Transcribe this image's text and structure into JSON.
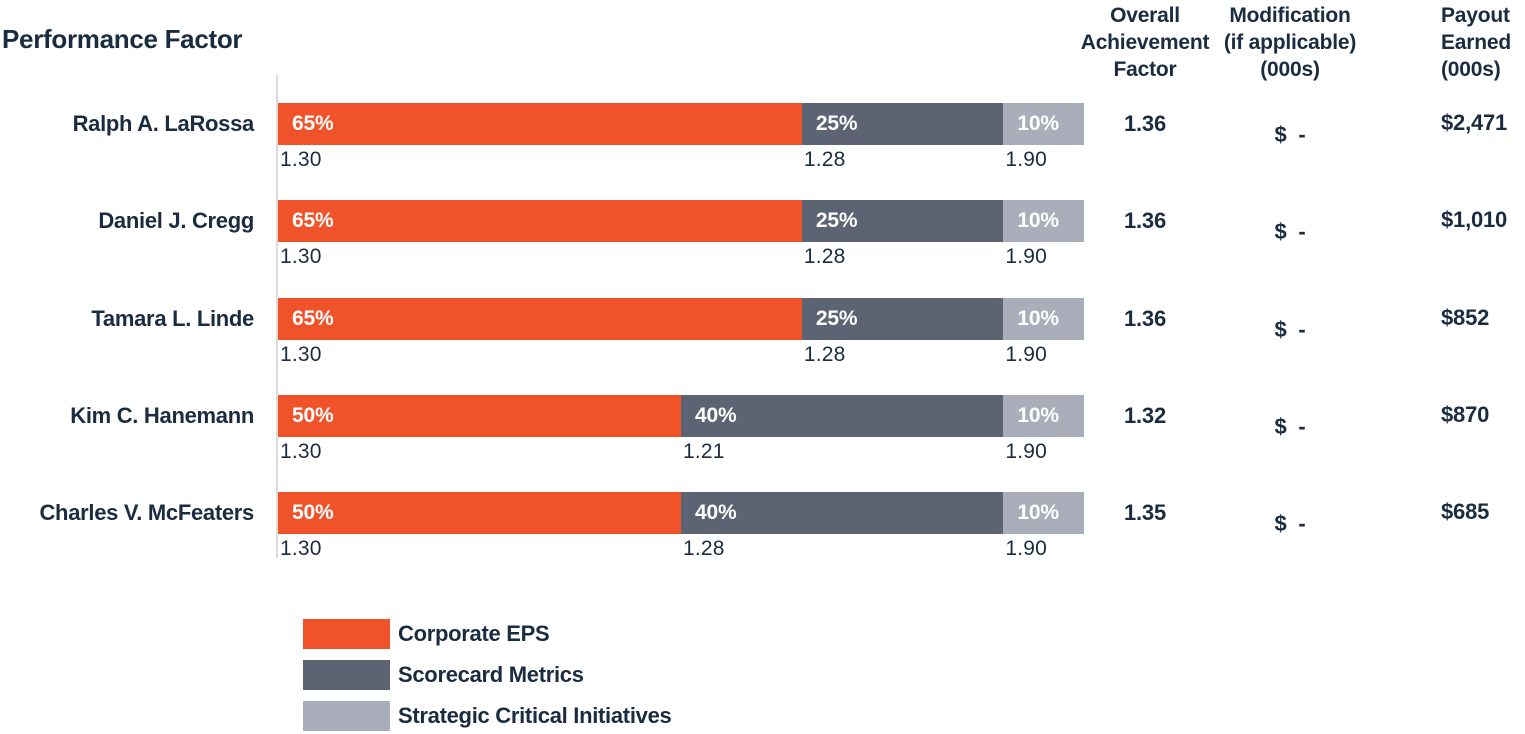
{
  "colors": {
    "eps": "#F0522A",
    "scorecard": "#5C6474",
    "strategic": "#A9AEBA",
    "text_navy": "#1B2C40",
    "axis_line": "#DCDCDC"
  },
  "columns": {
    "factor": "Overall\nAchievement\nFactor",
    "modification": "Modification\n(if applicable)\n(000s)",
    "payout": "Payout\nEarned\n(000s)"
  },
  "chart_data": {
    "type": "bar",
    "variant": "horizontal-stacked",
    "title": "Performance Factor",
    "x_unit": "component weight (%)",
    "xlim": [
      0,
      100
    ],
    "grid": "off",
    "legend_position": "bottom-left",
    "series_names": [
      "Corporate EPS",
      "Scorecard Metrics",
      "Strategic Critical Initiatives"
    ],
    "legend": [
      {
        "label": "Corporate EPS",
        "series": "eps"
      },
      {
        "label": "Scorecard Metrics",
        "series": "scorecard"
      },
      {
        "label": "Strategic Critical Initiatives",
        "series": "strategic"
      }
    ],
    "rows": [
      {
        "name": "Ralph A. LaRossa",
        "segments": [
          {
            "label": "65%",
            "pct": 65,
            "series": "Corporate EPS"
          },
          {
            "label": "25%",
            "pct": 25,
            "series": "Scorecard Metrics"
          },
          {
            "label": "10%",
            "pct": 10,
            "series": "Strategic Critical Initiatives"
          }
        ],
        "below": [
          {
            "text": "1.30",
            "at_pct": 0
          },
          {
            "text": "1.28",
            "at_pct": 65
          },
          {
            "text": "1.90",
            "at_pct": 90
          }
        ],
        "factor": "1.36",
        "modification": "$ -",
        "payout": "$2,471"
      },
      {
        "name": "Daniel J. Cregg",
        "segments": [
          {
            "label": "65%",
            "pct": 65,
            "series": "Corporate EPS"
          },
          {
            "label": "25%",
            "pct": 25,
            "series": "Scorecard Metrics"
          },
          {
            "label": "10%",
            "pct": 10,
            "series": "Strategic Critical Initiatives"
          }
        ],
        "below": [
          {
            "text": "1.30",
            "at_pct": 0
          },
          {
            "text": "1.28",
            "at_pct": 65
          },
          {
            "text": "1.90",
            "at_pct": 90
          }
        ],
        "factor": "1.36",
        "modification": "$ -",
        "payout": "$1,010"
      },
      {
        "name": "Tamara L. Linde",
        "segments": [
          {
            "label": "65%",
            "pct": 65,
            "series": "Corporate EPS"
          },
          {
            "label": "25%",
            "pct": 25,
            "series": "Scorecard Metrics"
          },
          {
            "label": "10%",
            "pct": 10,
            "series": "Strategic Critical Initiatives"
          }
        ],
        "below": [
          {
            "text": "1.30",
            "at_pct": 0
          },
          {
            "text": "1.28",
            "at_pct": 65
          },
          {
            "text": "1.90",
            "at_pct": 90
          }
        ],
        "factor": "1.36",
        "modification": "$ -",
        "payout": "$852"
      },
      {
        "name": "Kim C. Hanemann",
        "segments": [
          {
            "label": "50%",
            "pct": 50,
            "series": "Corporate EPS"
          },
          {
            "label": "40%",
            "pct": 40,
            "series": "Scorecard Metrics"
          },
          {
            "label": "10%",
            "pct": 10,
            "series": "Strategic Critical Initiatives"
          }
        ],
        "below": [
          {
            "text": "1.30",
            "at_pct": 0
          },
          {
            "text": "1.21",
            "at_pct": 50
          },
          {
            "text": "1.90",
            "at_pct": 90
          }
        ],
        "factor": "1.32",
        "modification": "$ -",
        "payout": "$870"
      },
      {
        "name": "Charles V. McFeaters",
        "segments": [
          {
            "label": "50%",
            "pct": 50,
            "series": "Corporate EPS"
          },
          {
            "label": "40%",
            "pct": 40,
            "series": "Scorecard Metrics"
          },
          {
            "label": "10%",
            "pct": 10,
            "series": "Strategic Critical Initiatives"
          }
        ],
        "below": [
          {
            "text": "1.30",
            "at_pct": 0
          },
          {
            "text": "1.28",
            "at_pct": 50
          },
          {
            "text": "1.90",
            "at_pct": 90
          }
        ],
        "factor": "1.35",
        "modification": "$ -",
        "payout": "$685"
      }
    ]
  }
}
